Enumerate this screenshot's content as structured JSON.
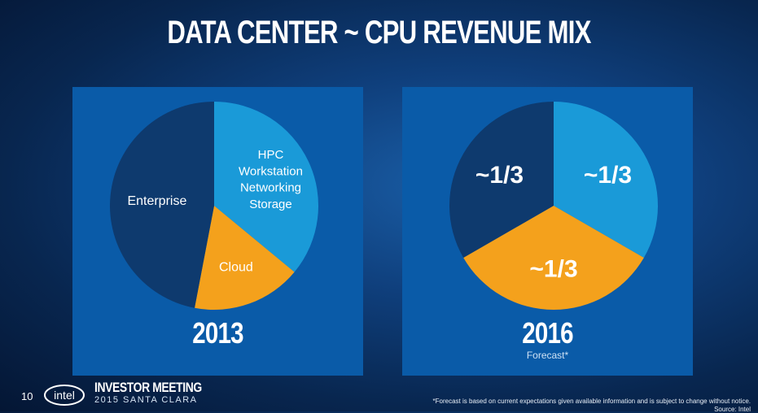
{
  "slide": {
    "title": "DATA CENTER ~ CPU REVENUE MIX",
    "page_number": "10",
    "logo_text": "intel",
    "event_line1": "INVESTOR MEETING",
    "event_line2": "2015 SANTA CLARA",
    "footnote": "*Forecast is based on current expectations given available information and is subject to change without notice.",
    "source": "Source: Intel"
  },
  "colors": {
    "enterprise": "#0e3a6e",
    "hpc": "#1a9ad8",
    "cloud": "#f4a11c",
    "panel": "#0a5ba8"
  },
  "chart_data": [
    {
      "type": "pie",
      "title": "2013",
      "slices": [
        {
          "label": "HPC\nWorkstation\nNetworking\nStorage",
          "value": 0.36,
          "color": "#1a9ad8"
        },
        {
          "label": "Cloud",
          "value": 0.17,
          "color": "#f4a11c"
        },
        {
          "label": "Enterprise",
          "value": 0.47,
          "color": "#0e3a6e"
        }
      ],
      "start_angle_deg": 0
    },
    {
      "type": "pie",
      "title": "2016",
      "subtitle": "Forecast*",
      "slices": [
        {
          "label": "~1/3",
          "value": 0.3333,
          "color": "#1a9ad8"
        },
        {
          "label": "~1/3",
          "value": 0.3333,
          "color": "#f4a11c"
        },
        {
          "label": "~1/3",
          "value": 0.3334,
          "color": "#0e3a6e"
        }
      ],
      "start_angle_deg": 0
    }
  ]
}
